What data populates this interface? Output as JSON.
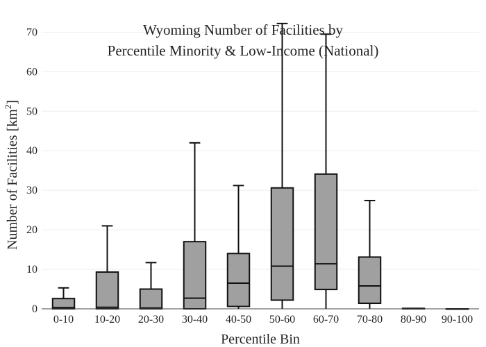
{
  "chart_data": {
    "type": "box",
    "title_lines": [
      "Wyoming Number of Facilities by",
      "Percentile Minority & Low-Income (National)"
    ],
    "xlabel": "Percentile Bin",
    "ylabel_main": "Number of Facilities  [km",
    "ylabel_sup": "2",
    "ylabel_end": "]",
    "ylim": [
      0,
      72
    ],
    "yticks": [
      0,
      10,
      20,
      30,
      40,
      50,
      60,
      70
    ],
    "grid": true,
    "box_color": "#a0a0a0",
    "line_color": "#111111",
    "categories": [
      "0-10",
      "10-20",
      "20-30",
      "30-40",
      "40-50",
      "50-60",
      "60-70",
      "70-80",
      "80-90",
      "90-100"
    ],
    "boxes": [
      {
        "min": 0,
        "q1": 0,
        "median": 0.3,
        "q3": 2.6,
        "max": 5.3
      },
      {
        "min": 0,
        "q1": 0,
        "median": 0.4,
        "q3": 9.3,
        "max": 21
      },
      {
        "min": 0,
        "q1": 0,
        "median": 0.2,
        "q3": 5.0,
        "max": 11.7
      },
      {
        "min": 0,
        "q1": 0,
        "median": 2.7,
        "q3": 17.0,
        "max": 42
      },
      {
        "min": 0,
        "q1": 0.6,
        "median": 6.5,
        "q3": 14.0,
        "max": 31.2
      },
      {
        "min": 0,
        "q1": 2.2,
        "median": 10.8,
        "q3": 30.6,
        "max": 72.2
      },
      {
        "min": 0,
        "q1": 4.9,
        "median": 11.4,
        "q3": 34.1,
        "max": 69.5
      },
      {
        "min": 0,
        "q1": 1.4,
        "median": 5.8,
        "q3": 13.1,
        "max": 27.4
      },
      {
        "min": 0,
        "q1": 0,
        "median": 0.1,
        "q3": 0.1,
        "max": 0.1
      },
      {
        "min": 0,
        "q1": 0,
        "median": 0,
        "q3": 0,
        "max": 0
      }
    ]
  }
}
